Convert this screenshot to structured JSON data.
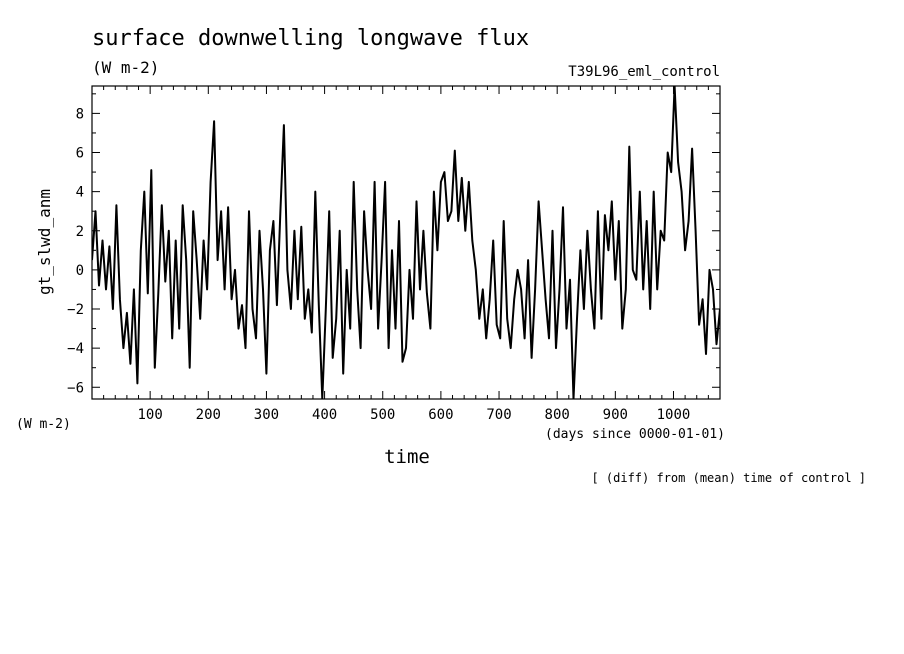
{
  "chart_data": {
    "type": "line",
    "title": "surface downwelling longwave flux",
    "units": "(W m-2)",
    "experiment": "T39L96_eml_control",
    "xlabel": "time",
    "xunits": "(days since 0000-01-01)",
    "ylabel": "gt_slwd_anm",
    "yunits": "(W m-2)",
    "note": "[ (diff) from (mean) time of control ]",
    "xlim": [
      0,
      1080
    ],
    "ylim": [
      -6.6,
      9.4
    ],
    "x_ticks": [
      100,
      200,
      300,
      400,
      500,
      600,
      700,
      800,
      900,
      1000
    ],
    "y_ticks": [
      -6,
      -4,
      -2,
      0,
      2,
      4,
      6,
      8
    ],
    "grid": false,
    "series": [
      {
        "x": [
          0,
          6,
          12,
          18,
          24,
          30,
          36,
          42,
          48,
          54,
          60,
          66,
          72,
          78,
          84,
          90,
          96,
          102,
          108,
          114,
          120,
          126,
          132,
          138,
          144,
          150,
          156,
          162,
          168,
          174,
          180,
          186,
          192,
          198,
          204,
          210,
          216,
          222,
          228,
          234,
          240,
          246,
          252,
          258,
          264,
          270,
          276,
          282,
          288,
          294,
          300,
          306,
          312,
          318,
          324,
          330,
          336,
          342,
          348,
          354,
          360,
          366,
          372,
          378,
          384,
          390,
          396,
          402,
          408,
          414,
          420,
          426,
          432,
          438,
          444,
          450,
          456,
          462,
          468,
          474,
          480,
          486,
          492,
          498,
          504,
          510,
          516,
          522,
          528,
          534,
          540,
          546,
          552,
          558,
          564,
          570,
          576,
          582,
          588,
          594,
          600,
          606,
          612,
          618,
          624,
          630,
          636,
          642,
          648,
          654,
          660,
          666,
          672,
          678,
          684,
          690,
          696,
          702,
          708,
          714,
          720,
          726,
          732,
          738,
          744,
          750,
          756,
          762,
          768,
          774,
          780,
          786,
          792,
          798,
          804,
          810,
          816,
          822,
          828,
          834,
          840,
          846,
          852,
          858,
          864,
          870,
          876,
          882,
          888,
          894,
          900,
          906,
          912,
          918,
          924,
          930,
          936,
          942,
          948,
          954,
          960,
          966,
          972,
          978,
          984,
          990,
          996,
          1002,
          1008,
          1014,
          1020,
          1026,
          1032,
          1038,
          1044,
          1050,
          1056,
          1062,
          1068,
          1074,
          1080
        ],
        "y": [
          0.5,
          3.0,
          -0.8,
          1.5,
          -1.0,
          1.2,
          -2.0,
          3.3,
          -1.5,
          -4.0,
          -2.2,
          -4.8,
          -1.0,
          -5.8,
          1.0,
          4.0,
          -1.2,
          5.1,
          -5.0,
          -1.2,
          3.3,
          -0.6,
          2.0,
          -3.5,
          1.5,
          -3.0,
          3.3,
          0.5,
          -5.0,
          3.0,
          0.5,
          -2.5,
          1.5,
          -1.0,
          4.5,
          7.6,
          0.5,
          3.0,
          -1.0,
          3.2,
          -1.5,
          0.0,
          -3.0,
          -1.8,
          -4.0,
          3.0,
          -2.0,
          -3.5,
          2.0,
          -1.0,
          -5.3,
          1.0,
          2.5,
          -1.8,
          3.0,
          7.4,
          0.0,
          -2.0,
          2.0,
          -1.5,
          2.2,
          -2.5,
          -1.0,
          -3.2,
          4.0,
          -1.8,
          -6.6,
          -2.0,
          3.0,
          -4.5,
          -2.5,
          2.0,
          -5.3,
          0.0,
          -3.0,
          4.5,
          -1.0,
          -4.0,
          3.0,
          0.0,
          -2.0,
          4.5,
          -3.0,
          0.5,
          4.5,
          -4.0,
          1.0,
          -3.0,
          2.5,
          -4.7,
          -4.0,
          0.0,
          -2.5,
          3.5,
          -1.0,
          2.0,
          -1.2,
          -3.0,
          4.0,
          1.0,
          4.5,
          5.0,
          2.5,
          3.0,
          6.1,
          2.5,
          4.7,
          2.0,
          4.5,
          1.5,
          0.0,
          -2.5,
          -1.0,
          -3.5,
          -1.5,
          1.5,
          -2.8,
          -3.5,
          2.5,
          -2.5,
          -4.0,
          -1.5,
          0.0,
          -1.0,
          -3.5,
          0.5,
          -4.5,
          -1.0,
          3.5,
          1.0,
          -1.5,
          -3.5,
          2.0,
          -4.0,
          -1.0,
          3.2,
          -3.0,
          -0.5,
          -6.6,
          -2.5,
          1.0,
          -2.0,
          2.0,
          -1.0,
          -3.0,
          3.0,
          -2.5,
          2.8,
          1.0,
          3.5,
          -0.5,
          2.5,
          -3.0,
          -1.0,
          6.3,
          0.0,
          -0.5,
          4.0,
          -1.0,
          2.5,
          -2.0,
          4.0,
          -1.0,
          2.0,
          1.5,
          6.0,
          5.0,
          9.4,
          5.5,
          4.0,
          1.0,
          2.5,
          6.2,
          2.0,
          -2.8,
          -1.5,
          -4.3,
          0.0,
          -1.0,
          -3.8,
          -2.0
        ]
      }
    ]
  }
}
